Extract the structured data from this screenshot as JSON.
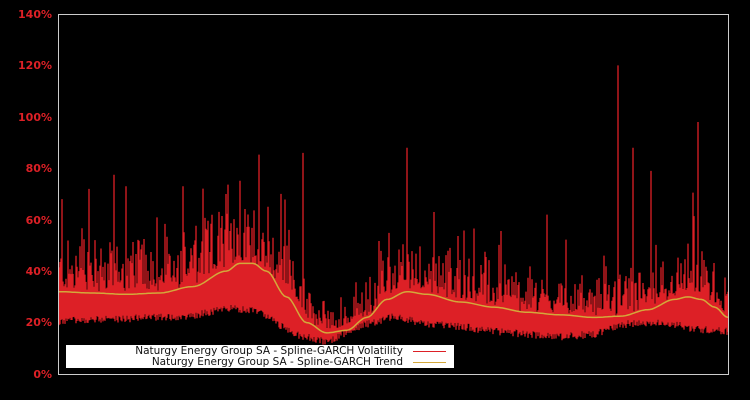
{
  "chart_data": {
    "type": "line",
    "title": "",
    "xlabel": "",
    "ylabel": "",
    "ylim": [
      0,
      140
    ],
    "y_ticks": [
      "0%",
      "20%",
      "40%",
      "60%",
      "80%",
      "100%",
      "120%",
      "140%"
    ],
    "grid": false,
    "legend_position": "lower left",
    "series": [
      {
        "name": "Naturgy Energy Group SA - Spline-GARCH Volatility",
        "color": "#dd2026",
        "baseline_envelope_pct": [
          [
            0,
            22
          ],
          [
            10,
            23
          ],
          [
            20,
            24
          ],
          [
            25,
            27
          ],
          [
            30,
            26
          ],
          [
            35,
            17
          ],
          [
            40,
            14
          ],
          [
            45,
            20
          ],
          [
            50,
            24
          ],
          [
            55,
            21
          ],
          [
            60,
            20
          ],
          [
            65,
            18
          ],
          [
            70,
            17
          ],
          [
            75,
            16
          ],
          [
            80,
            17
          ],
          [
            85,
            21
          ],
          [
            90,
            22
          ],
          [
            95,
            19
          ],
          [
            100,
            18
          ]
        ],
        "notable_spikes_pct": [
          {
            "x_frac": 0.005,
            "value": 68
          },
          {
            "x_frac": 0.045,
            "value": 72
          },
          {
            "x_frac": 0.1,
            "value": 73
          },
          {
            "x_frac": 0.185,
            "value": 73
          },
          {
            "x_frac": 0.25,
            "value": 70
          },
          {
            "x_frac": 0.365,
            "value": 86
          },
          {
            "x_frac": 0.52,
            "value": 88
          },
          {
            "x_frac": 0.56,
            "value": 63
          },
          {
            "x_frac": 0.73,
            "value": 62
          },
          {
            "x_frac": 0.836,
            "value": 120
          },
          {
            "x_frac": 0.858,
            "value": 88
          },
          {
            "x_frac": 0.885,
            "value": 79
          },
          {
            "x_frac": 0.955,
            "value": 98
          }
        ]
      },
      {
        "name": "Naturgy Energy Group SA - Spline-GARCH Trend",
        "color": "#d4a83a",
        "points_pct": [
          [
            0,
            32
          ],
          [
            0.05,
            31.5
          ],
          [
            0.1,
            31
          ],
          [
            0.15,
            31.5
          ],
          [
            0.2,
            34
          ],
          [
            0.25,
            40
          ],
          [
            0.27,
            43
          ],
          [
            0.29,
            43
          ],
          [
            0.31,
            40
          ],
          [
            0.34,
            30
          ],
          [
            0.37,
            20
          ],
          [
            0.4,
            16
          ],
          [
            0.43,
            17
          ],
          [
            0.46,
            22
          ],
          [
            0.49,
            29
          ],
          [
            0.52,
            32
          ],
          [
            0.55,
            31
          ],
          [
            0.6,
            28
          ],
          [
            0.65,
            26
          ],
          [
            0.7,
            24
          ],
          [
            0.75,
            23
          ],
          [
            0.8,
            22
          ],
          [
            0.84,
            22.5
          ],
          [
            0.88,
            25
          ],
          [
            0.92,
            29
          ],
          [
            0.94,
            30
          ],
          [
            0.96,
            29
          ],
          [
            0.98,
            26
          ],
          [
            1.0,
            22
          ]
        ]
      }
    ]
  },
  "axis": {
    "y_labels": [
      "140%",
      "120%",
      "100%",
      "80%",
      "60%",
      "40%",
      "20%",
      "0%"
    ]
  },
  "legend": {
    "items": [
      {
        "label": "Naturgy Energy Group SA - Spline-GARCH Volatility",
        "color": "#dd2026"
      },
      {
        "label": "Naturgy Energy Group SA - Spline-GARCH Trend",
        "color": "#d4a83a"
      }
    ]
  },
  "colors": {
    "background": "#000000",
    "axis_border": "#cccccc",
    "tick_label": "#dd2026"
  }
}
